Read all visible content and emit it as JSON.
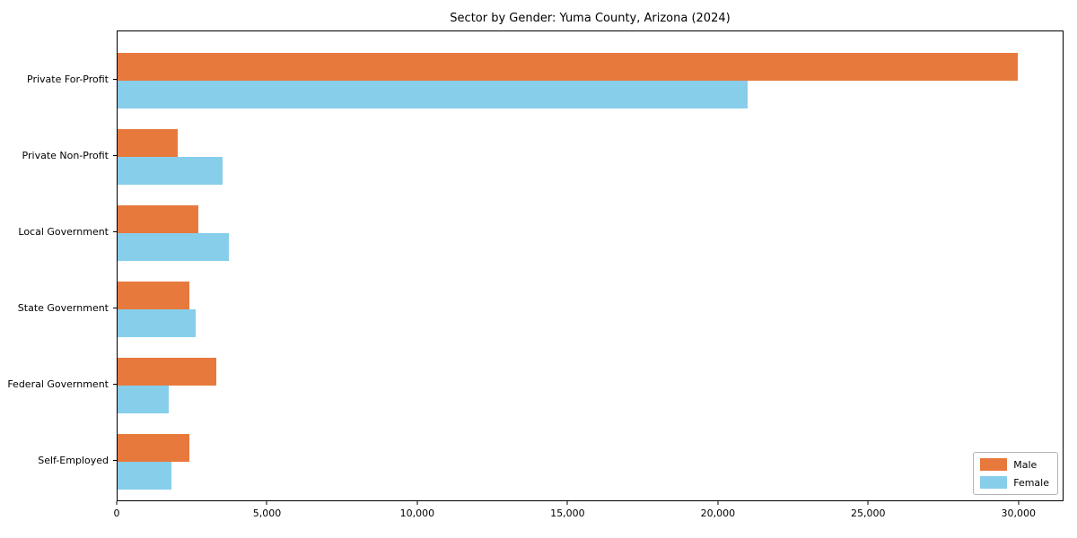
{
  "chart_data": {
    "type": "bar",
    "orientation": "horizontal",
    "title": "Sector by Gender: Yuma County, Arizona (2024)",
    "categories": [
      "Private For-Profit",
      "Private Non-Profit",
      "Local Government",
      "State Government",
      "Federal Government",
      "Self-Employed"
    ],
    "series": [
      {
        "name": "Male",
        "color": "#E8793D",
        "values": [
          30000,
          2000,
          2700,
          2400,
          3300,
          2400
        ]
      },
      {
        "name": "Female",
        "color": "#87CEEB",
        "values": [
          21000,
          3500,
          3700,
          2600,
          1700,
          1800
        ]
      }
    ],
    "xlabel": "",
    "ylabel": "",
    "xlim": [
      0,
      31500
    ],
    "x_ticks": [
      0,
      5000,
      10000,
      15000,
      20000,
      25000,
      30000
    ],
    "x_tick_labels": [
      "0",
      "5,000",
      "10,000",
      "15,000",
      "20,000",
      "25,000",
      "30,000"
    ],
    "grid": false,
    "legend_position": "lower right"
  }
}
